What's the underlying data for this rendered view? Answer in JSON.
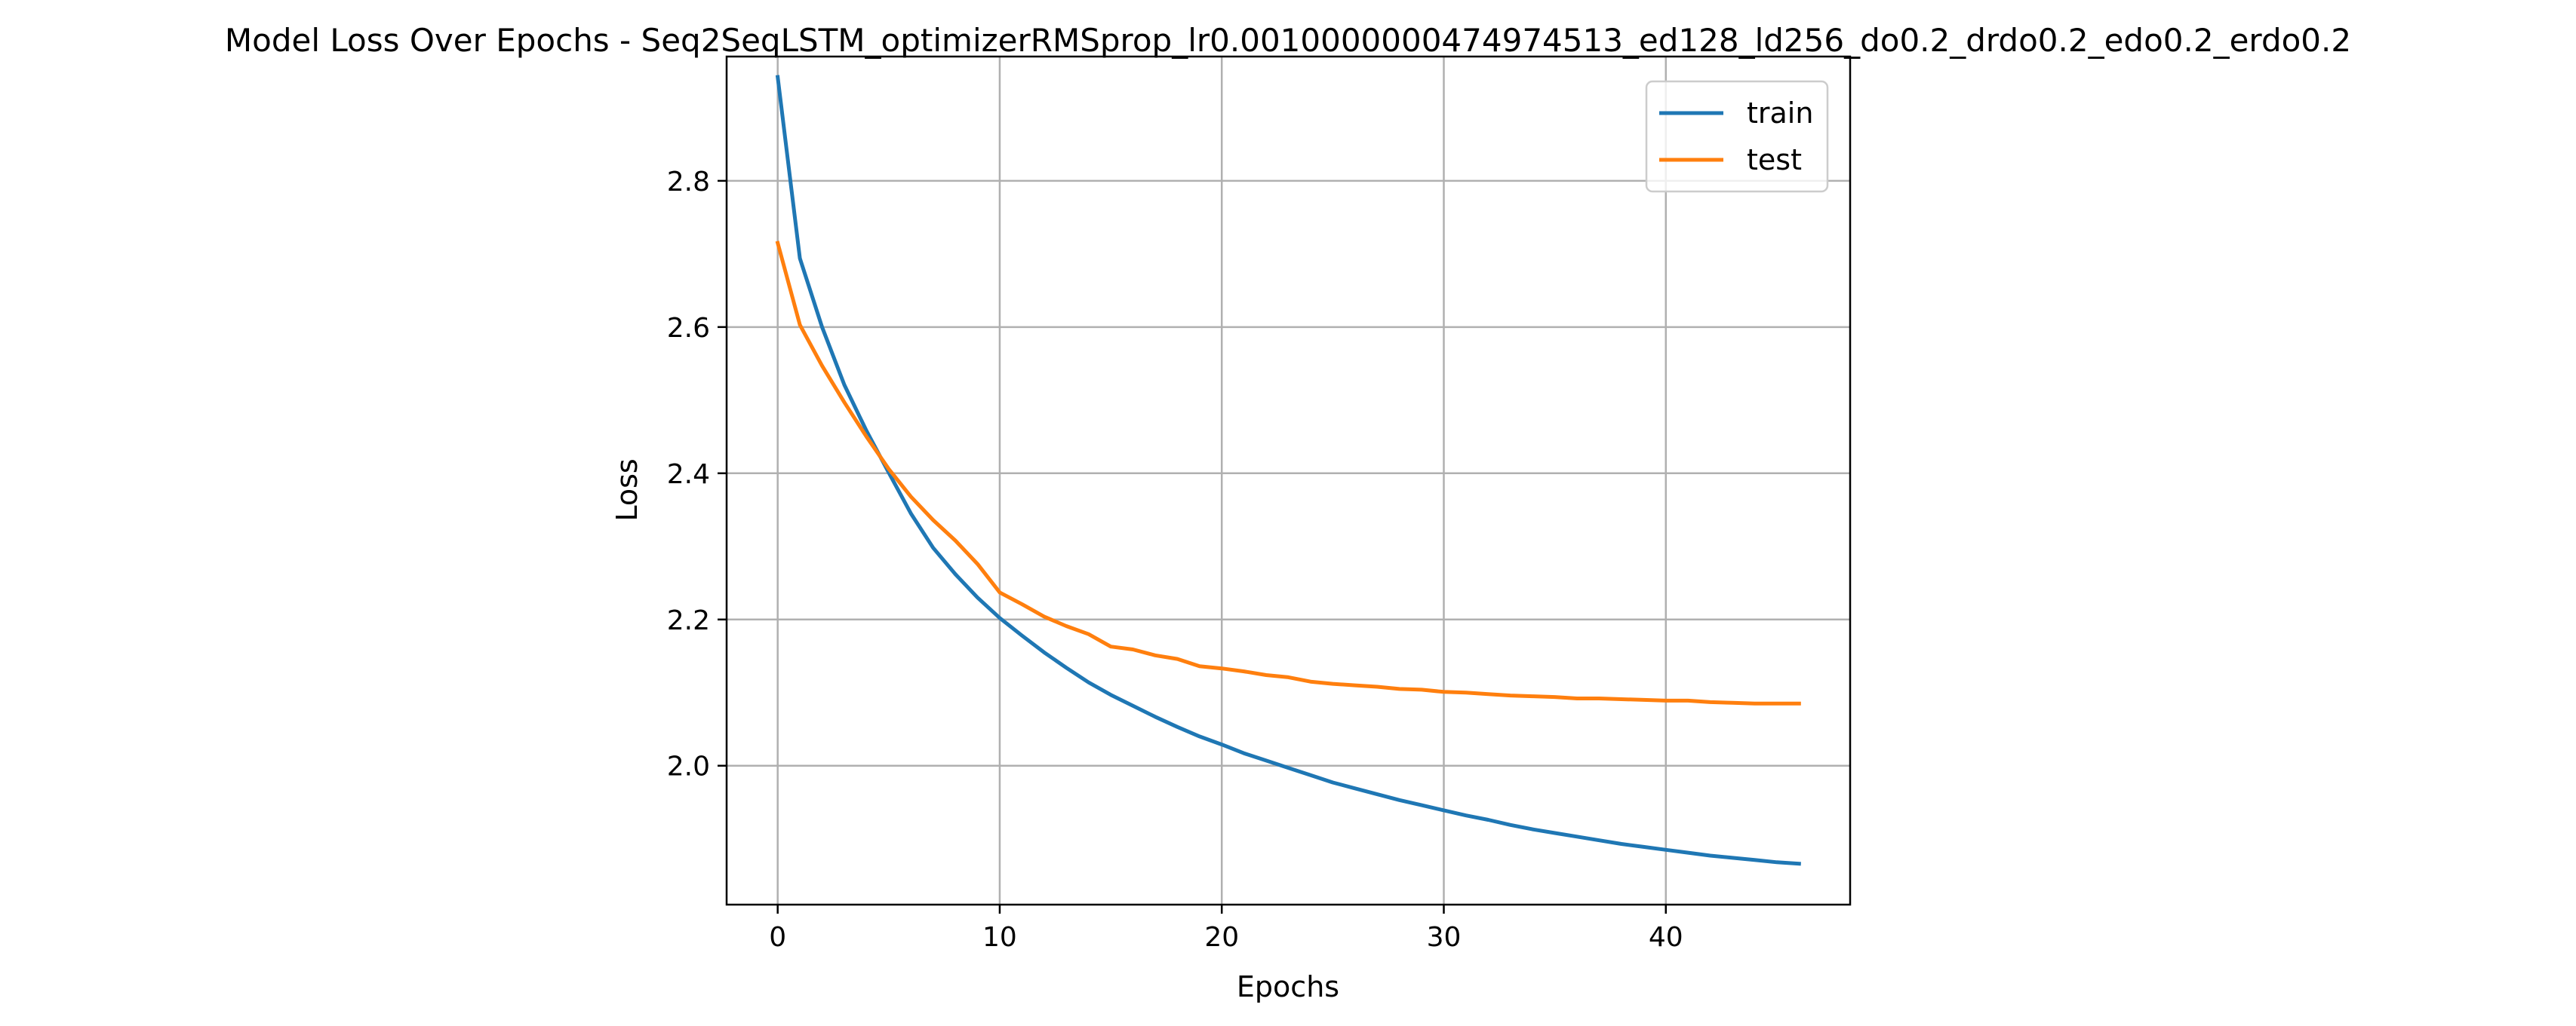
{
  "chart_data": {
    "type": "line",
    "title": "Model Loss Over Epochs - Seq2SeqLSTM_optimizerRMSprop_lr0.0010000000474974513_ed128_ld256_do0.2_drdo0.2_edo0.2_erdo0.2",
    "xlabel": "Epochs",
    "ylabel": "Loss",
    "xlim": [
      -2.3,
      48.3
    ],
    "ylim": [
      1.81,
      2.97
    ],
    "xticks": [
      0,
      10,
      20,
      30,
      40
    ],
    "xtick_labels": [
      "0",
      "10",
      "20",
      "30",
      "40"
    ],
    "yticks": [
      2.0,
      2.2,
      2.4,
      2.6,
      2.8
    ],
    "ytick_labels": [
      "2.0",
      "2.2",
      "2.4",
      "2.6",
      "2.8"
    ],
    "grid": true,
    "legend_position": "top-right",
    "x": [
      0,
      1,
      2,
      3,
      4,
      5,
      6,
      7,
      8,
      9,
      10,
      11,
      12,
      13,
      14,
      15,
      16,
      17,
      18,
      19,
      20,
      21,
      22,
      23,
      24,
      25,
      26,
      27,
      28,
      29,
      30,
      31,
      32,
      33,
      34,
      35,
      36,
      37,
      38,
      39,
      40,
      41,
      42,
      43,
      44,
      45,
      46
    ],
    "series": [
      {
        "name": "train",
        "color": "#1f77b4",
        "values": [
          2.942,
          2.694,
          2.6,
          2.521,
          2.458,
          2.401,
          2.345,
          2.298,
          2.262,
          2.23,
          2.202,
          2.178,
          2.155,
          2.134,
          2.114,
          2.097,
          2.082,
          2.067,
          2.053,
          2.04,
          2.029,
          2.017,
          2.007,
          1.997,
          1.987,
          1.977,
          1.969,
          1.961,
          1.953,
          1.946,
          1.939,
          1.932,
          1.926,
          1.919,
          1.913,
          1.908,
          1.903,
          1.898,
          1.893,
          1.889,
          1.885,
          1.881,
          1.877,
          1.874,
          1.871,
          1.868,
          1.866
        ]
      },
      {
        "name": "test",
        "color": "#ff7f0e",
        "values": [
          2.715,
          2.603,
          2.547,
          2.497,
          2.45,
          2.406,
          2.368,
          2.336,
          2.308,
          2.276,
          2.237,
          2.221,
          2.204,
          2.191,
          2.18,
          2.163,
          2.159,
          2.151,
          2.146,
          2.136,
          2.133,
          2.129,
          2.124,
          2.121,
          2.115,
          2.112,
          2.11,
          2.108,
          2.105,
          2.104,
          2.101,
          2.1,
          2.098,
          2.096,
          2.095,
          2.094,
          2.092,
          2.092,
          2.091,
          2.09,
          2.089,
          2.089,
          2.087,
          2.086,
          2.085,
          2.085,
          2.085
        ]
      }
    ]
  }
}
